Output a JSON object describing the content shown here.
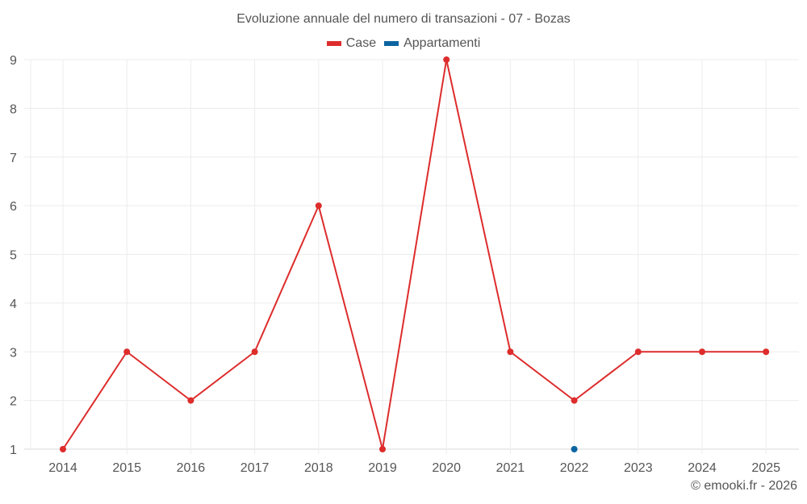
{
  "header": {
    "title": "Evoluzione annuale del numero di transazioni - 07 - Bozas"
  },
  "legend": {
    "items": [
      {
        "label": "Case",
        "color": "#dd2c2c"
      },
      {
        "label": "Appartamenti",
        "color": "#0b64a0"
      }
    ]
  },
  "footer": {
    "credit": "© emooki.fr - 2026"
  },
  "chart_data": {
    "type": "line",
    "title": "Evoluzione annuale del numero di transazioni - 07 - Bozas",
    "xlabel": "",
    "ylabel": "",
    "categories": [
      "2014",
      "2015",
      "2016",
      "2017",
      "2018",
      "2019",
      "2020",
      "2021",
      "2022",
      "2023",
      "2024",
      "2025"
    ],
    "series": [
      {
        "name": "Case",
        "color": "#dd2c2c",
        "values": [
          1,
          3,
          2,
          3,
          6,
          1,
          9,
          3,
          2,
          3,
          3,
          3
        ]
      },
      {
        "name": "Appartamenti",
        "color": "#0b64a0",
        "values": [
          null,
          null,
          null,
          null,
          null,
          null,
          null,
          null,
          1,
          null,
          null,
          null
        ]
      }
    ],
    "yticks": [
      "1",
      "2",
      "3",
      "4",
      "5",
      "6",
      "7",
      "8",
      "9"
    ],
    "ylim": [
      1,
      9
    ],
    "grid": true,
    "legend_position": "top"
  }
}
